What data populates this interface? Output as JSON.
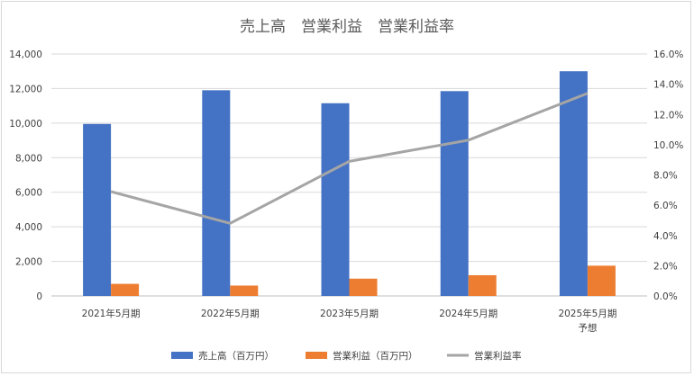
{
  "chart_data": {
    "type": "bar",
    "title": "売上高　営業利益　営業利益率",
    "categories": [
      "2021年5月期",
      "2022年5月期",
      "2023年5月期",
      "2024年5月期",
      "2025年5月期|予想"
    ],
    "series": [
      {
        "name": "売上高（百万円）",
        "kind": "bar",
        "axis": "left",
        "color": "#4472C4",
        "values": [
          9950,
          11900,
          11150,
          11850,
          13000
        ]
      },
      {
        "name": "営業利益（百万円）",
        "kind": "bar",
        "axis": "left",
        "color": "#ED7D31",
        "values": [
          700,
          600,
          1000,
          1200,
          1750
        ]
      },
      {
        "name": "営業利益率",
        "kind": "line",
        "axis": "right",
        "color": "#A5A5A5",
        "values": [
          6.9,
          4.8,
          8.9,
          10.3,
          13.4
        ]
      }
    ],
    "y_left": {
      "min": 0,
      "max": 14000,
      "step": 2000,
      "tick_labels": [
        "0",
        "2,000",
        "4,000",
        "6,000",
        "8,000",
        "10,000",
        "12,000",
        "14,000"
      ]
    },
    "y_right": {
      "min": 0,
      "max": 16,
      "step": 2,
      "tick_labels": [
        "0.0%",
        "2.0%",
        "4.0%",
        "6.0%",
        "8.0%",
        "10.0%",
        "12.0%",
        "14.0%",
        "16.0%"
      ]
    },
    "grid": true,
    "legend_position": "bottom"
  }
}
